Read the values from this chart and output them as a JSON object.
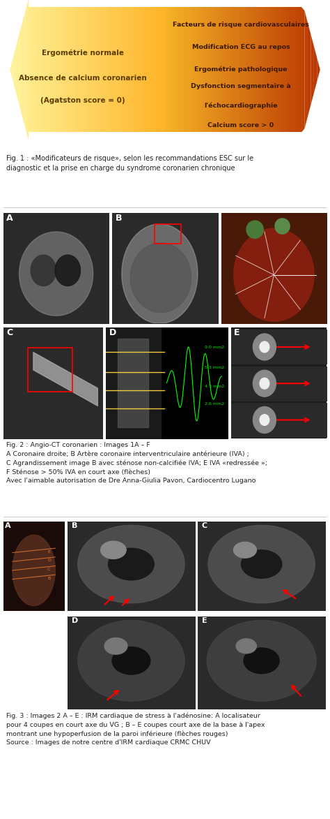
{
  "fig_width": 4.74,
  "fig_height": 11.73,
  "bg_color": "#ffffff",
  "arrow_section": {
    "left_text_line1": "Ergométrie normale",
    "left_text_line2": "Absence de calcium coronarien",
    "left_text_line3": "(Agatston score = 0)",
    "right_text_lines": [
      "Facteurs de risque cardiovasculaires",
      "Modification ECG au repos",
      "Ergométrie pathologique",
      "Dysfonction segmentaire à",
      "l'échocardiographie",
      "Calcium score > 0"
    ],
    "left_arrow_color_start": "#fff3b0",
    "left_arrow_color_end": "#f5c842",
    "right_arrow_color_start": "#f5c842",
    "right_arrow_color_end": "#c0392b",
    "text_color": "#333333"
  },
  "fig1_caption": "Fig. 1 : «Modificateurs de risque», selon les recommandations ESC sur le\ndiagnostic et la prise en charge du syndrome coronarien chronique",
  "fig2_caption": "Fig. 2 : Angio-CT coronarien : Images 1A – F\nA Coronaire droite; B Artère coronaire interventriculaire antérieure (IVA) ;\nC Agrandissement image B avec sténose non-calcifiée IVA; E IVA «redressée »;\nF Sténose > 50% IVA en court axe (flèches)\nAvec l'aimable autorisation de Dre Anna-Giulia Pavon, Cardiocentro Lugano",
  "fig3_caption": "Fig. 3 : Images 2 A – E : IRM cardiaque de stress à l'adénosine: A localisateur\npour 4 coupes en court axe du VG ; B – E coupes court axe de la base à l'apex\nmontrant une hypoperfusion de la paroi inférieure (flèches rouges)\nSource : Images de notre centre d'IRM cardiaque CRMC CHUV",
  "separator_color": "#cccccc"
}
